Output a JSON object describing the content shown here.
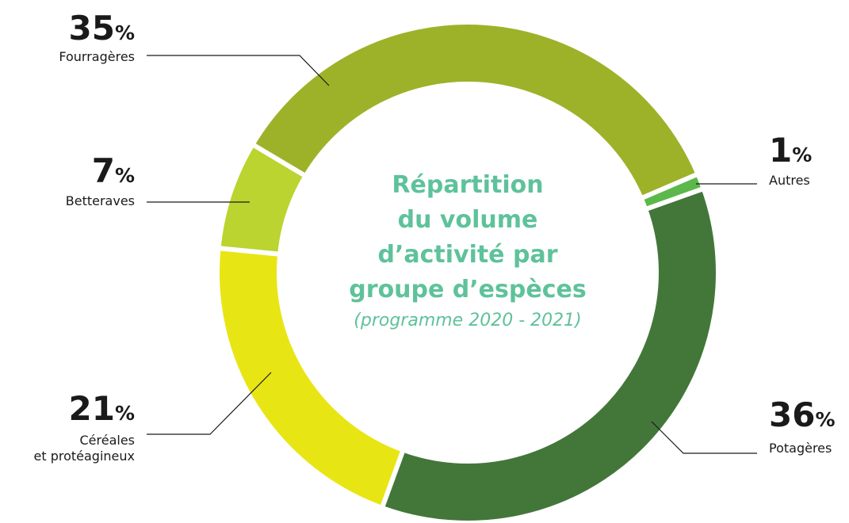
{
  "chart_data": {
    "type": "pie",
    "title": "Répartition\ndu volume\nd’activité par\ngroupe d’espèces",
    "subtitle": "(programme 2020 - 2021)",
    "categories": [
      "Autres",
      "Potagères",
      "Céréales\net protéagineux",
      "Betteraves",
      "Fourragères"
    ],
    "values": [
      1,
      36,
      21,
      7,
      35
    ],
    "value_labels": [
      "1%",
      "36%",
      "21%",
      "7%",
      "35%"
    ],
    "colors": [
      "#5cb84a",
      "#43773a",
      "#e8e514",
      "#bcd42f",
      "#9db228"
    ]
  }
}
